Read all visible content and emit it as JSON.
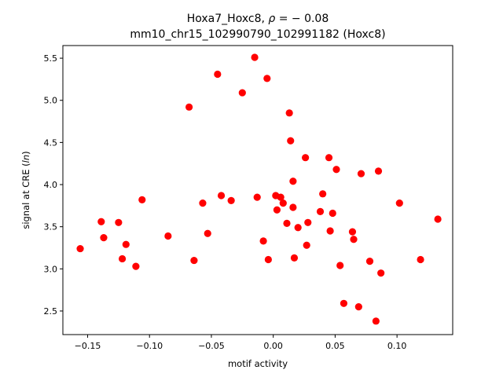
{
  "chart_data": {
    "type": "scatter",
    "title_line1_prefix": "Hoxa7_Hoxc8, ",
    "title_line1_rho": "ρ",
    "title_line1_suffix": " = − 0.08",
    "title_line2": "mm10_chr15_102990790_102991182 (Hoxc8)",
    "xlabel": "motif activity",
    "ylabel_prefix": "signal at CRE (",
    "ylabel_italic": "ln",
    "ylabel_suffix": ")",
    "xlim": [
      -0.17,
      0.145
    ],
    "ylim": [
      2.22,
      5.65
    ],
    "xticks": [
      -0.15,
      -0.1,
      -0.05,
      0.0,
      0.05,
      0.1
    ],
    "xtick_labels": [
      "−0.15",
      "−0.10",
      "−0.05",
      "0.00",
      "0.05",
      "0.10"
    ],
    "yticks": [
      2.5,
      3.0,
      3.5,
      4.0,
      4.5,
      5.0,
      5.5
    ],
    "ytick_labels": [
      "2.5",
      "3.0",
      "3.5",
      "4.0",
      "4.5",
      "5.0",
      "5.5"
    ],
    "grid": false,
    "marker_color": "#ff0000",
    "points": [
      {
        "x": -0.156,
        "y": 3.24
      },
      {
        "x": -0.139,
        "y": 3.56
      },
      {
        "x": -0.137,
        "y": 3.37
      },
      {
        "x": -0.125,
        "y": 3.55
      },
      {
        "x": -0.122,
        "y": 3.12
      },
      {
        "x": -0.119,
        "y": 3.29
      },
      {
        "x": -0.111,
        "y": 3.03
      },
      {
        "x": -0.106,
        "y": 3.82
      },
      {
        "x": -0.085,
        "y": 3.39
      },
      {
        "x": -0.068,
        "y": 4.92
      },
      {
        "x": -0.064,
        "y": 3.1
      },
      {
        "x": -0.057,
        "y": 3.78
      },
      {
        "x": -0.053,
        "y": 3.42
      },
      {
        "x": -0.045,
        "y": 5.31
      },
      {
        "x": -0.042,
        "y": 3.87
      },
      {
        "x": -0.034,
        "y": 3.81
      },
      {
        "x": -0.025,
        "y": 5.09
      },
      {
        "x": -0.015,
        "y": 5.51
      },
      {
        "x": -0.013,
        "y": 3.85
      },
      {
        "x": -0.008,
        "y": 3.33
      },
      {
        "x": -0.005,
        "y": 5.26
      },
      {
        "x": -0.004,
        "y": 3.11
      },
      {
        "x": 0.002,
        "y": 3.87
      },
      {
        "x": 0.003,
        "y": 3.7
      },
      {
        "x": 0.006,
        "y": 3.85
      },
      {
        "x": 0.008,
        "y": 3.78
      },
      {
        "x": 0.011,
        "y": 3.54
      },
      {
        "x": 0.013,
        "y": 4.85
      },
      {
        "x": 0.014,
        "y": 4.52
      },
      {
        "x": 0.016,
        "y": 4.04
      },
      {
        "x": 0.016,
        "y": 3.73
      },
      {
        "x": 0.017,
        "y": 3.13
      },
      {
        "x": 0.02,
        "y": 3.49
      },
      {
        "x": 0.026,
        "y": 4.32
      },
      {
        "x": 0.027,
        "y": 3.28
      },
      {
        "x": 0.028,
        "y": 3.55
      },
      {
        "x": 0.038,
        "y": 3.68
      },
      {
        "x": 0.04,
        "y": 3.89
      },
      {
        "x": 0.045,
        "y": 4.32
      },
      {
        "x": 0.046,
        "y": 3.45
      },
      {
        "x": 0.048,
        "y": 3.66
      },
      {
        "x": 0.051,
        "y": 4.18
      },
      {
        "x": 0.054,
        "y": 3.04
      },
      {
        "x": 0.057,
        "y": 2.59
      },
      {
        "x": 0.064,
        "y": 3.44
      },
      {
        "x": 0.065,
        "y": 3.35
      },
      {
        "x": 0.069,
        "y": 2.55
      },
      {
        "x": 0.071,
        "y": 4.13
      },
      {
        "x": 0.078,
        "y": 3.09
      },
      {
        "x": 0.083,
        "y": 2.38
      },
      {
        "x": 0.085,
        "y": 4.16
      },
      {
        "x": 0.087,
        "y": 2.95
      },
      {
        "x": 0.102,
        "y": 3.78
      },
      {
        "x": 0.119,
        "y": 3.11
      },
      {
        "x": 0.133,
        "y": 3.59
      }
    ]
  }
}
